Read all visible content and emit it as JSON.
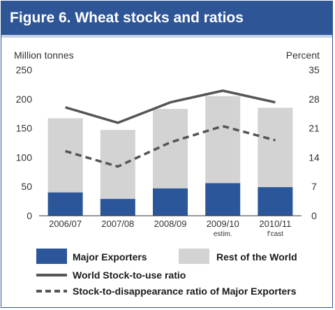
{
  "header": {
    "title": "Figure 6. Wheat stocks and ratios"
  },
  "colors": {
    "brand": "#2e5596",
    "major_exporters": "#2b5699",
    "rest_of_world": "#d3d3d3",
    "world_ratio_line": "#555555",
    "exporters_ratio_line": "#555555"
  },
  "chart_data": {
    "type": "bar",
    "stacked": true,
    "categories": [
      "2006/07",
      "2007/08",
      "2008/09",
      "2009/10",
      "2010/11"
    ],
    "category_sublabels": [
      "",
      "",
      "",
      "estim.",
      "f'cast"
    ],
    "ylabel_left": "Million tonnes",
    "ylabel_right": "Percent",
    "ylim_left": [
      0,
      250
    ],
    "ylim_right": [
      0,
      35
    ],
    "yticks_left": [
      0,
      50,
      100,
      150,
      200,
      250
    ],
    "yticks_right": [
      0,
      7,
      14,
      21,
      28,
      35
    ],
    "grid": false,
    "series": [
      {
        "name": "Major Exporters",
        "axis": "left",
        "type": "bar",
        "values": [
          40,
          29,
          47,
          56,
          49
        ]
      },
      {
        "name": "Rest of the World",
        "axis": "left",
        "type": "bar",
        "values": [
          127,
          118,
          136,
          149,
          136
        ]
      },
      {
        "name": "World Stock-to-use ratio",
        "axis": "right",
        "type": "line",
        "style": "solid",
        "values": [
          26.0,
          22.3,
          27.2,
          30.0,
          27.2
        ]
      },
      {
        "name": "Stock-to-disappearance ratio of Major Exporters",
        "axis": "right",
        "type": "line",
        "style": "dashed",
        "values": [
          15.5,
          11.8,
          17.6,
          21.5,
          18.1
        ]
      }
    ],
    "legend": {
      "placement": "bottom",
      "items": [
        {
          "label": "Major Exporters",
          "kind": "swatch",
          "color": "#2b5699"
        },
        {
          "label": "Rest of the World",
          "kind": "swatch",
          "color": "#d3d3d3"
        },
        {
          "label": "World Stock-to-use ratio",
          "kind": "line",
          "color": "#555555",
          "style": "solid"
        },
        {
          "label": "Stock-to-disappearance ratio of Major Exporters",
          "kind": "line",
          "color": "#555555",
          "style": "dashed"
        }
      ]
    }
  }
}
